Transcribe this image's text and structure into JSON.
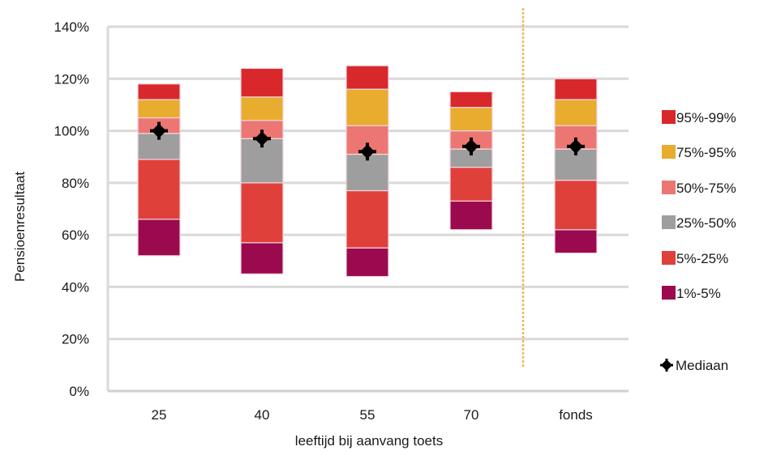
{
  "chart_data": {
    "type": "bar",
    "subtype": "stacked-floating-percentile",
    "xlabel": "leeftijd bij aanvang toets",
    "ylabel": "Pensioenresultaat",
    "ylim": [
      0,
      140
    ],
    "yticks": [
      "0%",
      "20%",
      "40%",
      "60%",
      "80%",
      "100%",
      "120%",
      "140%"
    ],
    "categories": [
      "25",
      "40",
      "55",
      "70",
      "fonds"
    ],
    "bands": [
      {
        "name": "1%-5%",
        "color": "#9b0a4e"
      },
      {
        "name": "5%-25%",
        "color": "#e0403a"
      },
      {
        "name": "25%-50%",
        "color": "#9e9e9e"
      },
      {
        "name": "50%-75%",
        "color": "#ec7772"
      },
      {
        "name": "75%-95%",
        "color": "#e8ac2e"
      },
      {
        "name": "95%-99%",
        "color": "#d9282b"
      }
    ],
    "percentiles": [
      [
        52,
        66,
        89,
        99,
        105,
        112,
        118
      ],
      [
        45,
        57,
        80,
        97,
        104,
        113,
        124
      ],
      [
        44,
        55,
        77,
        91,
        102,
        116,
        125
      ],
      [
        62,
        73,
        86,
        93,
        100,
        109,
        115
      ],
      [
        53,
        62,
        81,
        93,
        102,
        112,
        120
      ]
    ],
    "median": [
      100,
      97,
      92,
      94,
      94
    ],
    "median_label": "Mediaan",
    "median_color": "#000000",
    "separator_color": "#f0b85a",
    "grid": "horizontal",
    "legend": "right"
  }
}
